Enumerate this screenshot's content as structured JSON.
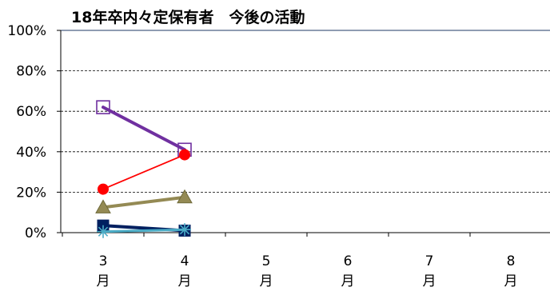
{
  "chart_data": {
    "type": "line",
    "title": "18年卒内々定保有者　今後の活動",
    "xlabel": "",
    "ylabel": "",
    "categories": [
      "3月",
      "4月",
      "5月",
      "6月",
      "7月",
      "8月"
    ],
    "y_ticks": [
      "0%",
      "20%",
      "40%",
      "60%",
      "80%",
      "100%"
    ],
    "ylim": [
      0,
      100
    ],
    "grid": "horizontal dashed",
    "legend": "none",
    "series": [
      {
        "values": [
          62,
          41,
          null,
          null,
          null,
          null
        ],
        "color": "#7030a0",
        "marker": "open-square"
      },
      {
        "values": [
          21.5,
          38.5,
          null,
          null,
          null,
          null
        ],
        "color": "#ff0000",
        "marker": "filled-circle"
      },
      {
        "values": [
          12.5,
          17.5,
          null,
          null,
          null,
          null
        ],
        "color": "#948a54",
        "marker": "filled-triangle"
      },
      {
        "values": [
          3.5,
          1,
          null,
          null,
          null,
          null
        ],
        "color": "#002060",
        "marker": "filled-square"
      },
      {
        "values": [
          0.5,
          1.5,
          null,
          null,
          null,
          null
        ],
        "color": "#4bacc6",
        "marker": "asterisk"
      }
    ]
  }
}
